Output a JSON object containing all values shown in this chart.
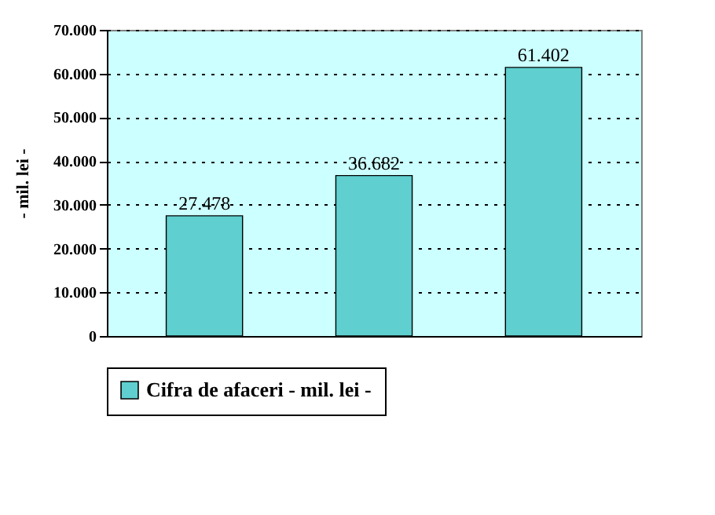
{
  "chart_data": {
    "type": "bar",
    "ylabel": "- mil. lei -",
    "categories": [
      null,
      null,
      null
    ],
    "series": [
      {
        "name": "Cifra de afaceri - mil. lei -",
        "color": "#5fcfcf",
        "values": [
          27478,
          36682,
          61402
        ]
      }
    ],
    "value_labels": [
      "27.478",
      "36.682",
      "61.402"
    ],
    "ylim": [
      0,
      70000
    ],
    "yticks": [
      0,
      {
        "value": 10000,
        "label": "10.000"
      },
      {
        "value": 20000,
        "label": "20.000"
      },
      {
        "value": 30000,
        "label": "30.000"
      },
      {
        "value": 40000,
        "label": "40.000"
      },
      {
        "value": 50000,
        "label": "50.000"
      },
      {
        "value": 60000,
        "label": "60.000"
      },
      {
        "value": 70000,
        "label": "70.000"
      }
    ],
    "grid": "y",
    "legend": "bottom"
  }
}
